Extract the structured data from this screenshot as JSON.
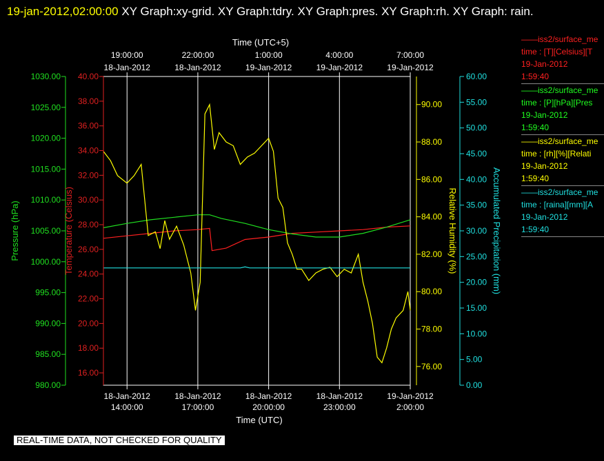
{
  "header": {
    "timestamp": "19-jan-2012,02:00:00",
    "title": "XY Graph:xy-grid.  XY Graph:tdry.  XY Graph:pres.  XY Graph:rh.  XY Graph: rain."
  },
  "footer": {
    "text": "REAL-TIME DATA, NOT CHECKED FOR QUALITY"
  },
  "legend": [
    {
      "color": "#ff2020",
      "line1": "iss2/surface_me",
      "line2": "time : [T][Celsius][T",
      "line3": "19-Jan-2012",
      "line4": "1:59:40"
    },
    {
      "color": "#20ff20",
      "line1": "iss2/surface_me",
      "line2": "time : [P][hPa][Pres",
      "line3": "19-Jan-2012",
      "line4": "1:59:40"
    },
    {
      "color": "#ffff00",
      "line1": "iss2/surface_me",
      "line2": "time : [rh][%][Relati",
      "line3": "19-Jan-2012",
      "line4": "1:59:40"
    },
    {
      "color": "#20e0e0",
      "line1": "iss2/surface_me",
      "line2": "time : [raina][mm][A",
      "line3": "19-Jan-2012",
      "line4": "1:59:40"
    }
  ],
  "chart_data": {
    "type": "line",
    "x_range_hours_utc": [
      13,
      26
    ],
    "grid": true,
    "top_axis": {
      "label": "Time (UTC+5)",
      "ticks": [
        {
          "x": 14,
          "time": "19:00:00",
          "date": "18-Jan-2012"
        },
        {
          "x": 17,
          "time": "22:00:00",
          "date": "18-Jan-2012"
        },
        {
          "x": 20,
          "time": "1:00:00",
          "date": "19-Jan-2012"
        },
        {
          "x": 23,
          "time": "4:00:00",
          "date": "19-Jan-2012"
        },
        {
          "x": 26,
          "time": "7:00:00",
          "date": "19-Jan-2012"
        }
      ]
    },
    "bottom_axis": {
      "label": "Time (UTC)",
      "ticks": [
        {
          "x": 14,
          "date": "18-Jan-2012",
          "time": "14:00:00"
        },
        {
          "x": 17,
          "date": "18-Jan-2012",
          "time": "17:00:00"
        },
        {
          "x": 20,
          "date": "18-Jan-2012",
          "time": "20:00:00"
        },
        {
          "x": 23,
          "date": "18-Jan-2012",
          "time": "23:00:00"
        },
        {
          "x": 26,
          "date": "19-Jan-2012",
          "time": "2:00:00"
        }
      ]
    },
    "axes": {
      "pressure": {
        "label": "Pressure (hPa)",
        "color": "#20e020",
        "range": [
          980,
          1030
        ],
        "ticks": [
          "980.00",
          "985.00",
          "990.00",
          "995.00",
          "1000.00",
          "1005.00",
          "1010.00",
          "1015.00",
          "1020.00",
          "1025.00",
          "1030.00"
        ]
      },
      "temperature": {
        "label": "Temperature (Celsius)",
        "color": "#e02020",
        "range": [
          15,
          40
        ],
        "ticks": [
          "16.00",
          "18.00",
          "20.00",
          "22.00",
          "24.00",
          "26.00",
          "28.00",
          "30.00",
          "32.00",
          "34.00",
          "36.00",
          "38.00",
          "40.00"
        ]
      },
      "humidity": {
        "label": "Relative Humidity (%)",
        "color": "#ffff00",
        "range": [
          75,
          91.5
        ],
        "ticks": [
          "76.00",
          "78.00",
          "80.00",
          "82.00",
          "84.00",
          "86.00",
          "88.00",
          "90.00"
        ]
      },
      "precip": {
        "label": "Accumulated Precipitation (mm)",
        "color": "#20e0e0",
        "range": [
          0,
          60
        ],
        "ticks": [
          "0.00",
          "5.00",
          "10.00",
          "15.00",
          "20.00",
          "25.00",
          "30.00",
          "35.00",
          "40.00",
          "45.00",
          "50.00",
          "55.00",
          "60.00"
        ]
      }
    },
    "series": [
      {
        "name": "Temperature",
        "axis": "temperature",
        "color": "#ff2020",
        "x": [
          13,
          14,
          15,
          16,
          17,
          17.5,
          17.6,
          18.2,
          19,
          20,
          21,
          22,
          23,
          24,
          25,
          26
        ],
        "y": [
          26.9,
          27.1,
          27.3,
          27.5,
          27.6,
          27.7,
          25.9,
          26.1,
          26.8,
          27.0,
          27.3,
          27.4,
          27.5,
          27.6,
          27.8,
          27.9
        ]
      },
      {
        "name": "Pressure",
        "axis": "pressure",
        "color": "#20e020",
        "x": [
          13,
          14,
          15,
          16,
          17,
          17.5,
          18,
          19,
          20,
          21,
          22,
          23,
          24,
          25,
          26
        ],
        "y": [
          1005.5,
          1006.2,
          1006.8,
          1007.2,
          1007.6,
          1007.6,
          1007.0,
          1006.2,
          1005.2,
          1004.5,
          1004.0,
          1004.0,
          1004.6,
          1005.6,
          1006.8
        ]
      },
      {
        "name": "Relative Humidity",
        "axis": "humidity",
        "color": "#ffff00",
        "x": [
          13,
          13.3,
          13.6,
          14,
          14.3,
          14.6,
          14.9,
          15.2,
          15.4,
          15.6,
          15.8,
          16.1,
          16.4,
          16.7,
          16.9,
          17.1,
          17.3,
          17.5,
          17.7,
          17.9,
          18.2,
          18.5,
          18.8,
          19.1,
          19.4,
          19.7,
          20.0,
          20.2,
          20.4,
          20.6,
          20.8,
          21.0,
          21.2,
          21.4,
          21.7,
          22.0,
          22.3,
          22.6,
          22.9,
          23.2,
          23.5,
          23.8,
          24.0,
          24.2,
          24.4,
          24.6,
          24.8,
          25.0,
          25.2,
          25.4,
          25.7,
          25.9,
          26.0
        ],
        "y": [
          87.5,
          87.0,
          86.2,
          85.8,
          86.2,
          86.8,
          83.0,
          83.2,
          82.3,
          83.8,
          82.8,
          83.5,
          82.5,
          81.0,
          79.0,
          80.5,
          89.5,
          90.0,
          87.6,
          88.5,
          88.0,
          87.8,
          86.8,
          87.2,
          87.4,
          87.8,
          88.2,
          87.5,
          85.0,
          84.5,
          82.6,
          82.0,
          81.2,
          81.2,
          80.6,
          81.0,
          81.2,
          81.3,
          80.8,
          81.2,
          81.0,
          82.0,
          80.5,
          79.5,
          78.3,
          76.5,
          76.2,
          77.0,
          78.0,
          78.6,
          79.0,
          80.0,
          79.0
        ]
      },
      {
        "name": "Accumulated Precipitation",
        "axis": "precip",
        "color": "#20e0e0",
        "x": [
          13,
          18.8,
          19.0,
          19.2,
          26
        ],
        "y": [
          22.8,
          22.8,
          23.0,
          22.8,
          22.8
        ]
      }
    ]
  }
}
